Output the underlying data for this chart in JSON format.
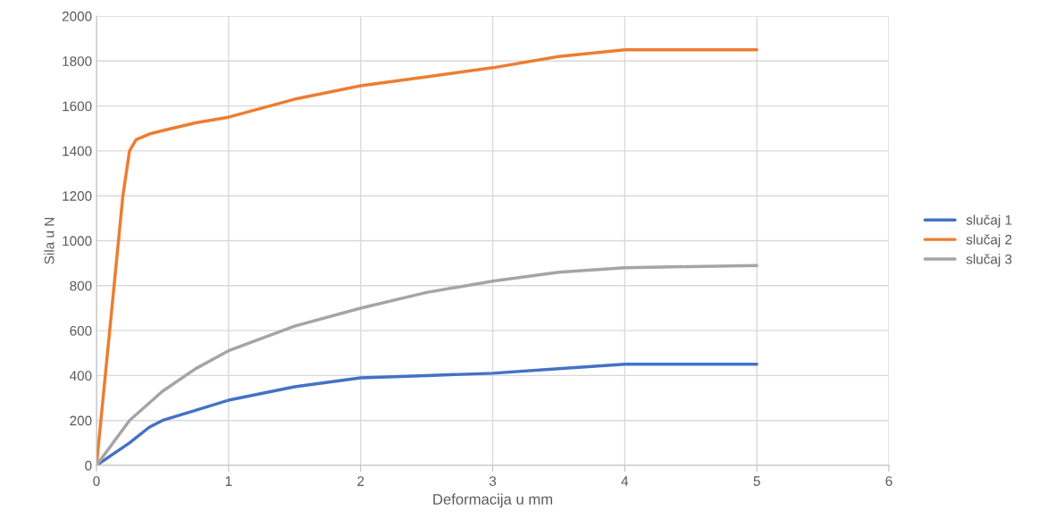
{
  "chart_data": {
    "type": "line",
    "xlabel": "Deformacija u mm",
    "ylabel": "Sila u N",
    "xlim": [
      0,
      6
    ],
    "xticks": [
      0,
      1,
      2,
      3,
      4,
      5,
      6
    ],
    "ylim": [
      0,
      2000
    ],
    "yticks": [
      0,
      200,
      400,
      600,
      800,
      1000,
      1200,
      1400,
      1600,
      1800,
      2000
    ],
    "grid": true,
    "legend": "right",
    "marker": "none",
    "line_style": "solid",
    "series": [
      {
        "name": "slučaj 1",
        "color": "#4472c4",
        "x": [
          0,
          0.25,
          0.4,
          0.5,
          0.75,
          1,
          1.5,
          2,
          2.5,
          3,
          3.5,
          4,
          4.5,
          5
        ],
        "values": [
          0,
          100,
          170,
          200,
          245,
          290,
          350,
          390,
          400,
          410,
          430,
          450,
          450,
          450
        ]
      },
      {
        "name": "slučaj 2",
        "color": "#ed7d31",
        "x": [
          0,
          0.1,
          0.2,
          0.25,
          0.3,
          0.4,
          0.5,
          0.75,
          1,
          1.5,
          2,
          2.5,
          3,
          3.5,
          4,
          4.5,
          5
        ],
        "values": [
          0,
          600,
          1200,
          1400,
          1450,
          1475,
          1490,
          1525,
          1550,
          1630,
          1690,
          1730,
          1770,
          1820,
          1850,
          1850,
          1850
        ]
      },
      {
        "name": "slučaj 3",
        "color": "#a5a5a5",
        "x": [
          0,
          0.25,
          0.5,
          0.75,
          1,
          1.5,
          2,
          2.5,
          3,
          3.5,
          4,
          4.5,
          5
        ],
        "values": [
          0,
          200,
          330,
          430,
          510,
          620,
          700,
          770,
          820,
          860,
          880,
          885,
          890
        ]
      }
    ]
  }
}
